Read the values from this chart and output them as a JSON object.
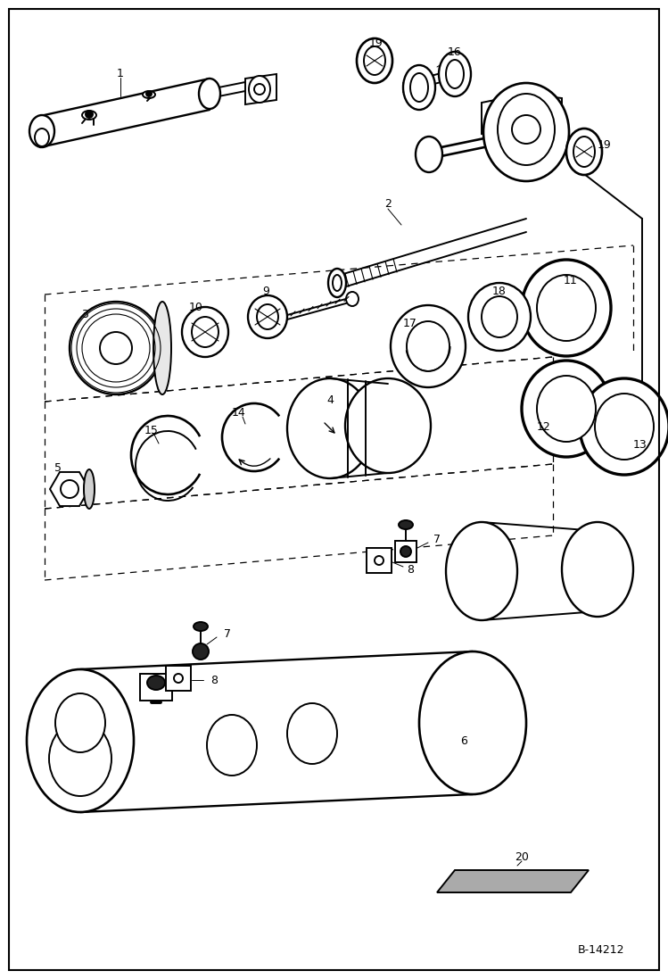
{
  "background_color": "#ffffff",
  "fig_width": 7.49,
  "fig_height": 10.97,
  "dpi": 100,
  "watermark": "B-14212",
  "line_color": "#000000",
  "lw": 1.4
}
